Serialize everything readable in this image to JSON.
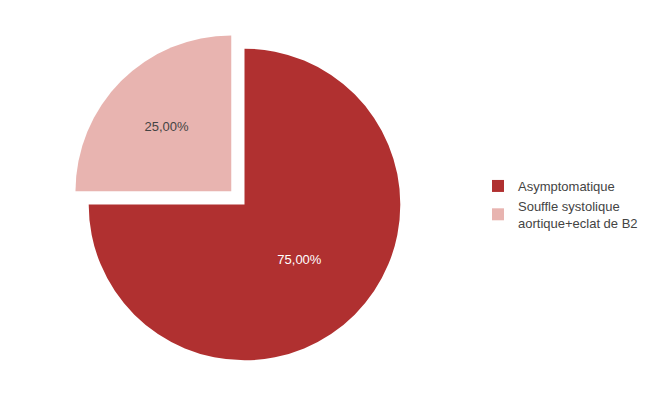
{
  "chart_data": {
    "type": "pie",
    "categories": [
      "Asymptomatique",
      "Souffle systolique\naortique+eclat de B2"
    ],
    "values": [
      75,
      25
    ],
    "value_labels": [
      "75,00%",
      "25,00%"
    ],
    "colors": [
      "#b03030",
      "#e8b4b0"
    ],
    "data_labels": true,
    "legend": "right"
  }
}
